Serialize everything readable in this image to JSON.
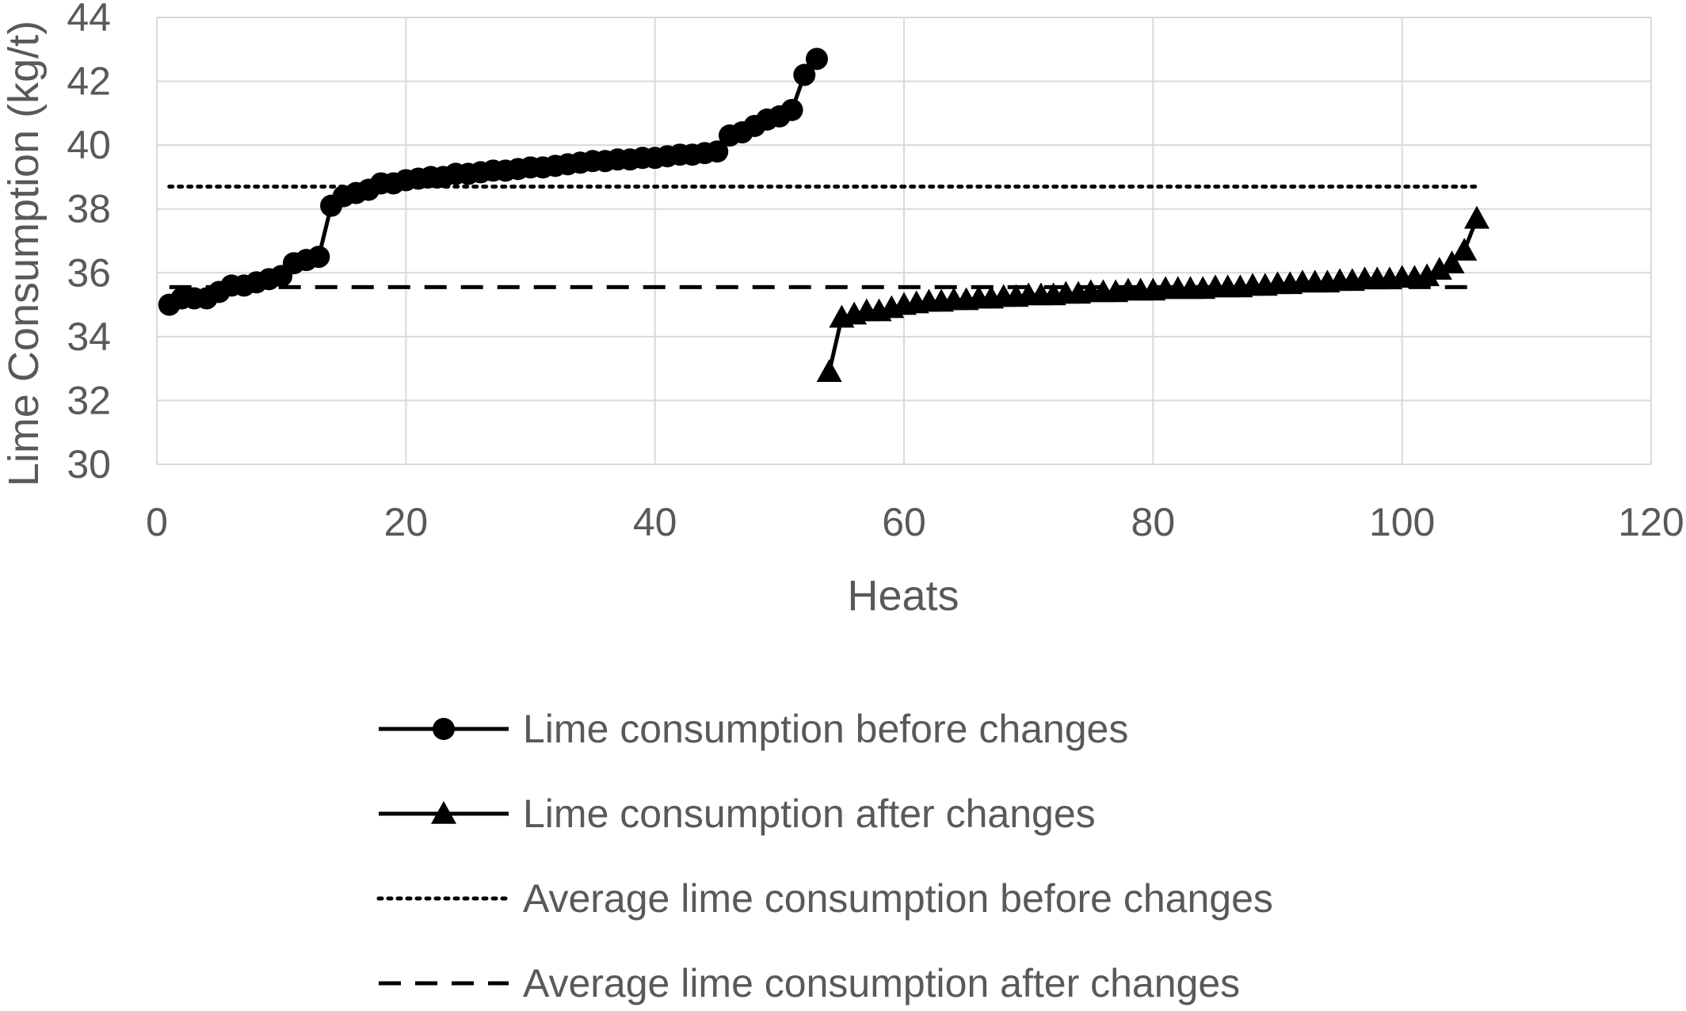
{
  "chart_data": {
    "type": "line",
    "xlabel": "Heats",
    "ylabel": "Lime Consumption (kg/t)",
    "xlim": [
      0,
      120
    ],
    "ylim": [
      30,
      44
    ],
    "x_ticks": [
      "0",
      "20",
      "40",
      "60",
      "80",
      "100",
      "120"
    ],
    "y_ticks": [
      "30",
      "32",
      "34",
      "36",
      "38",
      "40",
      "42",
      "44"
    ],
    "grid": true,
    "legend_position": "bottom",
    "series": [
      {
        "name": "Lime consumption before changes",
        "marker": "circle",
        "line_style": "solid",
        "color": "#000000",
        "x": [
          1,
          2,
          3,
          4,
          5,
          6,
          7,
          8,
          9,
          10,
          11,
          12,
          13,
          14,
          15,
          16,
          17,
          18,
          19,
          20,
          21,
          22,
          23,
          24,
          25,
          26,
          27,
          28,
          29,
          30,
          31,
          32,
          33,
          34,
          35,
          36,
          37,
          38,
          39,
          40,
          41,
          42,
          43,
          44,
          45,
          46,
          47,
          48,
          49,
          50,
          51,
          52,
          53
        ],
        "values": [
          35.0,
          35.2,
          35.2,
          35.2,
          35.4,
          35.6,
          35.6,
          35.7,
          35.8,
          35.9,
          36.3,
          36.4,
          36.5,
          38.1,
          38.4,
          38.5,
          38.6,
          38.8,
          38.8,
          38.9,
          38.95,
          39.0,
          39.0,
          39.1,
          39.1,
          39.15,
          39.2,
          39.2,
          39.25,
          39.3,
          39.3,
          39.35,
          39.4,
          39.45,
          39.5,
          39.5,
          39.55,
          39.55,
          39.6,
          39.6,
          39.65,
          39.7,
          39.7,
          39.75,
          39.8,
          40.3,
          40.4,
          40.6,
          40.8,
          40.9,
          41.1,
          42.2,
          42.7
        ]
      },
      {
        "name": "Lime consumption after changes",
        "marker": "triangle",
        "line_style": "solid",
        "color": "#000000",
        "x": [
          54,
          55,
          56,
          57,
          58,
          59,
          60,
          61,
          62,
          63,
          64,
          65,
          66,
          67,
          68,
          69,
          70,
          71,
          72,
          73,
          74,
          75,
          76,
          77,
          78,
          79,
          80,
          81,
          82,
          83,
          84,
          85,
          86,
          87,
          88,
          89,
          90,
          91,
          92,
          93,
          94,
          95,
          96,
          97,
          98,
          99,
          100,
          101,
          102,
          103,
          104,
          105,
          106
        ],
        "values": [
          32.9,
          34.6,
          34.7,
          34.8,
          34.8,
          34.9,
          35.0,
          35.05,
          35.1,
          35.1,
          35.15,
          35.15,
          35.2,
          35.2,
          35.25,
          35.25,
          35.3,
          35.3,
          35.3,
          35.35,
          35.35,
          35.4,
          35.4,
          35.4,
          35.45,
          35.45,
          35.45,
          35.5,
          35.5,
          35.5,
          35.5,
          35.55,
          35.55,
          35.55,
          35.6,
          35.6,
          35.65,
          35.65,
          35.7,
          35.7,
          35.7,
          35.75,
          35.75,
          35.8,
          35.8,
          35.8,
          35.85,
          35.85,
          35.9,
          36.1,
          36.3,
          36.7,
          37.7
        ]
      },
      {
        "name": "Average lime consumption before changes",
        "marker": "none",
        "line_style": "dotted",
        "color": "#000000",
        "x": [
          1,
          106
        ],
        "values": [
          38.7,
          38.7
        ]
      },
      {
        "name": "Average lime consumption after changes",
        "marker": "none",
        "line_style": "dashed",
        "color": "#000000",
        "x": [
          1,
          106
        ],
        "values": [
          35.55,
          35.55
        ]
      }
    ]
  }
}
